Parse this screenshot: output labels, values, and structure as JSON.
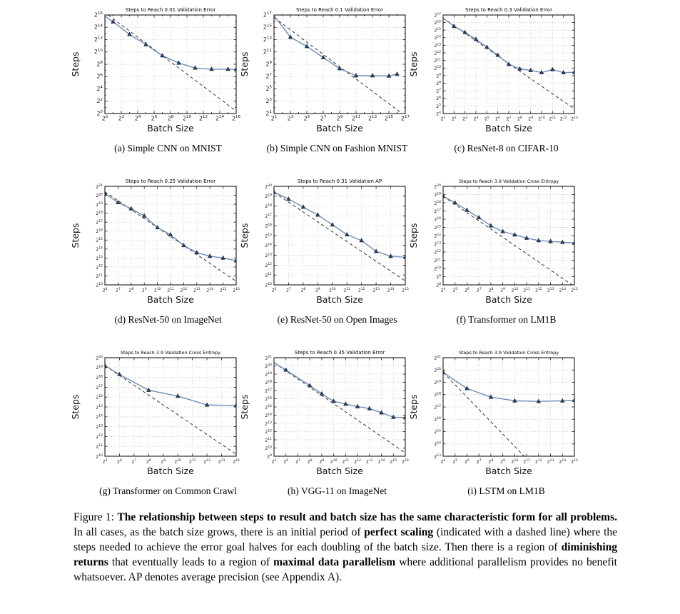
{
  "colors": {
    "line": "#6d8cba",
    "marker": "#2d3e57",
    "marker_edge": "#18273d",
    "dash": "#333333",
    "grid": "#b0b0b0",
    "spine": "#1a1a1a",
    "text": "#111111"
  },
  "figure": {
    "panels": [
      {
        "caption": "(a) Simple CNN on MNIST"
      },
      {
        "caption": "(b) Simple CNN on Fashion MNIST"
      },
      {
        "caption": "(c) ResNet-8 on CIFAR-10"
      },
      {
        "caption": "(d) ResNet-50 on ImageNet"
      },
      {
        "caption": "(e) ResNet-50 on Open Images"
      },
      {
        "caption": "(f) Transformer on LM1B"
      },
      {
        "caption": "(g) Transformer on Common Crawl"
      },
      {
        "caption": "(h) VGG-11 on ImageNet"
      },
      {
        "caption": "(i) LSTM on LM1B"
      }
    ],
    "caption": {
      "parts": [
        {
          "text": "Figure 1: ",
          "bold": false
        },
        {
          "text": "The relationship between steps to result and batch size has the same characteristic form for all problems.",
          "bold": true
        },
        {
          "text": " In all cases, as the batch size grows, there is an initial period of ",
          "bold": false
        },
        {
          "text": "perfect scaling",
          "bold": true
        },
        {
          "text": " (indicated with a dashed line) where the steps needed to achieve the error goal halves for each doubling of the batch size. Then there is a region of ",
          "bold": false
        },
        {
          "text": "diminishing returns",
          "bold": true
        },
        {
          "text": " that eventually leads to a region of ",
          "bold": false
        },
        {
          "text": "maximal data parallelism",
          "bold": true
        },
        {
          "text": " where additional parallelism provides no benefit whatsoever. AP denotes average precision (see Appendix A).",
          "bold": false
        }
      ]
    }
  },
  "chart_data": [
    {
      "type": "line",
      "id": "simple-cnn-mnist",
      "title": "Steps to Reach 0.01 Validation Error",
      "xlabel": "Batch Size",
      "ylabel": "Steps",
      "x": {
        "min": 0,
        "max": 16,
        "label_step": 2
      },
      "y": {
        "min": 0,
        "max": 16,
        "label_step": 2
      },
      "line_start": [
        0,
        15.8
      ],
      "points": [
        [
          1,
          14.9
        ],
        [
          3,
          12.85
        ],
        [
          5,
          11.2
        ],
        [
          7,
          9.4
        ],
        [
          9,
          8.2
        ],
        [
          11,
          7.4
        ],
        [
          13,
          7.2
        ],
        [
          15,
          7.2
        ],
        [
          16,
          7.15
        ]
      ],
      "dash": [
        [
          0.4,
          16
        ],
        [
          16,
          0.4
        ]
      ]
    },
    {
      "type": "line",
      "id": "simple-cnn-fashion-mnist",
      "title": "Steps to Reach 0.1 Validation Error",
      "xlabel": "Batch Size",
      "ylabel": "Steps",
      "x": {
        "min": 1,
        "max": 17,
        "label_step": 2
      },
      "y": {
        "min": 1,
        "max": 17,
        "label_step": 2
      },
      "line_start": [
        1,
        16.9
      ],
      "points": [
        [
          3,
          13.4
        ],
        [
          5,
          11.9
        ],
        [
          7,
          10.1
        ],
        [
          9,
          8.3
        ],
        [
          11,
          7.15
        ],
        [
          13,
          7.15
        ],
        [
          15,
          7.1
        ],
        [
          16,
          7.4
        ]
      ],
      "dash": [
        [
          1,
          16.6
        ],
        [
          16.3,
          1.3
        ]
      ]
    },
    {
      "type": "line",
      "id": "resnet8-cifar10",
      "title": "Steps to Reach 0.3 Validation Error",
      "xlabel": "Batch Size",
      "ylabel": "Steps",
      "x": {
        "min": 1,
        "max": 13,
        "label_step": 1
      },
      "y": {
        "min": 4,
        "max": 17,
        "label_step": 1
      },
      "line_start": [
        1,
        16.6
      ],
      "points": [
        [
          2,
          15.5
        ],
        [
          3,
          14.7
        ],
        [
          4,
          13.8
        ],
        [
          5,
          12.75
        ],
        [
          6,
          11.7
        ],
        [
          7,
          10.5
        ],
        [
          8,
          9.9
        ],
        [
          9,
          9.7
        ],
        [
          10,
          9.4
        ],
        [
          11,
          9.8
        ],
        [
          12,
          9.4
        ],
        [
          13,
          9.45
        ]
      ],
      "dash": [
        [
          1,
          16.6
        ],
        [
          13,
          4.6
        ]
      ]
    },
    {
      "type": "line",
      "id": "resnet50-imagenet",
      "title": "Steps to Reach 0.25 Validation Error",
      "xlabel": "Batch Size",
      "ylabel": "Steps",
      "x": {
        "min": 6,
        "max": 16,
        "label_step": 1
      },
      "y": {
        "min": 10,
        "max": 21,
        "label_step": 1
      },
      "points": [
        [
          6,
          20.2
        ],
        [
          7,
          19.2
        ],
        [
          8,
          18.5
        ],
        [
          9,
          17.7
        ],
        [
          10,
          16.4
        ],
        [
          11,
          15.6
        ],
        [
          12,
          14.4
        ],
        [
          13,
          13.6
        ],
        [
          14,
          13.2
        ],
        [
          15,
          13.0
        ],
        [
          16,
          12.7
        ]
      ],
      "dash": [
        [
          6,
          20.4
        ],
        [
          16,
          10.4
        ]
      ]
    },
    {
      "type": "line",
      "id": "resnet50-open-images",
      "title": "Steps to Reach 0.31 Validation AP",
      "xlabel": "Batch Size",
      "ylabel": "Steps",
      "x": {
        "min": 6,
        "max": 15,
        "label_step": 1
      },
      "y": {
        "min": 10,
        "max": 20,
        "label_step": 1
      },
      "points": [
        [
          6,
          19.4
        ],
        [
          7,
          18.7
        ],
        [
          8,
          17.9
        ],
        [
          9,
          17.1
        ],
        [
          10,
          16.1
        ],
        [
          11,
          15.1
        ],
        [
          12,
          14.5
        ],
        [
          13,
          13.4
        ],
        [
          14,
          12.9
        ],
        [
          15,
          12.8
        ]
      ],
      "dash": [
        [
          6,
          19.4
        ],
        [
          15,
          10.4
        ]
      ]
    },
    {
      "type": "line",
      "id": "transformer-lm1b",
      "title": "Steps to Reach 3.9 Validation Cross Entropy",
      "xlabel": "Batch Size",
      "ylabel": "Steps",
      "x": {
        "min": 4,
        "max": 15,
        "label_step": 1
      },
      "y": {
        "min": 8,
        "max": 20,
        "label_step": 1
      },
      "points": [
        [
          4,
          18.8
        ],
        [
          5,
          18.0
        ],
        [
          6,
          17.1
        ],
        [
          7,
          16.2
        ],
        [
          8,
          15.2
        ],
        [
          9,
          14.5
        ],
        [
          10,
          14.1
        ],
        [
          11,
          13.7
        ],
        [
          12,
          13.4
        ],
        [
          13,
          13.3
        ],
        [
          14,
          13.2
        ],
        [
          15,
          13.1
        ]
      ],
      "dash": [
        [
          4,
          18.8
        ],
        [
          14.8,
          8.0
        ]
      ]
    },
    {
      "type": "line",
      "id": "transformer-common-crawl",
      "title": "Steps to Reach 3.9 Validation Cross Entropy",
      "xlabel": "Batch Size",
      "ylabel": "Steps",
      "x": {
        "min": 5,
        "max": 14,
        "label_step": 1
      },
      "y": {
        "min": 10,
        "max": 20,
        "label_step": 1
      },
      "points": [
        [
          5,
          19.2
        ],
        [
          6,
          18.3
        ],
        [
          8,
          16.7
        ],
        [
          10,
          16.1
        ],
        [
          12,
          15.2
        ],
        [
          14,
          15.15
        ]
      ],
      "dash": [
        [
          5,
          19.2
        ],
        [
          14,
          10.2
        ]
      ]
    },
    {
      "type": "line",
      "id": "vgg11-imagenet",
      "title": "Steps to Reach 0.35 Validation Error",
      "xlabel": "Batch Size",
      "ylabel": "Steps",
      "x": {
        "min": 5,
        "max": 16,
        "label_step": 1
      },
      "y": {
        "min": 9,
        "max": 21,
        "label_step": 1
      },
      "line_start": [
        5,
        20.4
      ],
      "points": [
        [
          6,
          19.5
        ],
        [
          8,
          17.6
        ],
        [
          9,
          16.6
        ],
        [
          10,
          15.7
        ],
        [
          11,
          15.35
        ],
        [
          12,
          15.05
        ],
        [
          13,
          14.8
        ],
        [
          14,
          14.3
        ],
        [
          15,
          13.75
        ],
        [
          16,
          13.7
        ]
      ],
      "dash": [
        [
          5,
          20.4
        ],
        [
          16,
          9.4
        ]
      ]
    },
    {
      "type": "line",
      "id": "lstm-lm1b",
      "title": "Steps to Reach 3.9 Validation Cross Entropy",
      "xlabel": "Batch Size",
      "ylabel": "Steps",
      "x": {
        "min": 4,
        "max": 15,
        "label_step": 1
      },
      "y": {
        "min": 13,
        "max": 21,
        "label_step": 1
      },
      "points": [
        [
          4,
          19.8
        ],
        [
          6,
          18.5
        ],
        [
          8,
          17.8
        ],
        [
          10,
          17.5
        ],
        [
          12,
          17.45
        ],
        [
          14,
          17.5
        ],
        [
          15,
          17.55
        ]
      ],
      "dash": [
        [
          4,
          19.8
        ],
        [
          10.8,
          13.0
        ]
      ]
    }
  ]
}
